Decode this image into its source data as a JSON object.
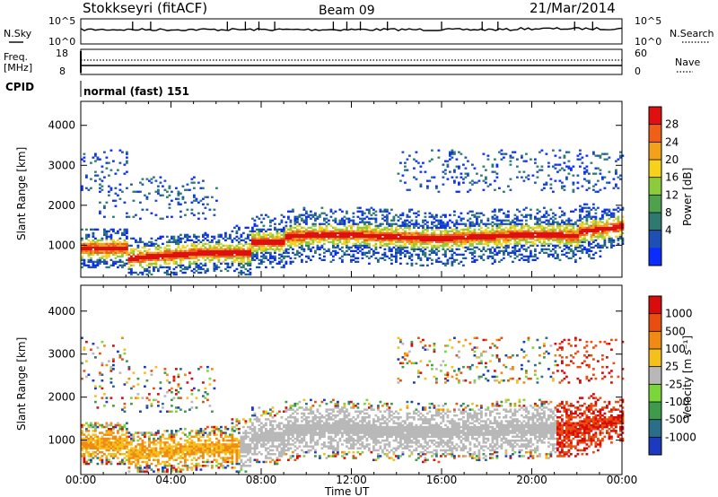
{
  "header": {
    "station": "Stokkseyri (fitACF)",
    "beam": "Beam 09",
    "date": "21/Mar/2014"
  },
  "strips": {
    "nsky_label": "N.Sky",
    "nsearch_label": "N.Search",
    "nsky_ticks_left": [
      "10^5",
      "10^0"
    ],
    "nsky_ticks_right": [
      "10^5",
      "10^0"
    ],
    "freq_label": "Freq.",
    "freq_unit": "[MHz]",
    "freq_ticks": [
      "18",
      "8"
    ],
    "nave_label": "Nave",
    "nave_ticks": [
      "60",
      "0"
    ],
    "cpid_label": "CPID",
    "cpid_value": "normal (fast) 151"
  },
  "colors": {
    "power_scale": [
      "#0a2cff",
      "#1d4fb4",
      "#2e7a70",
      "#4ea24e",
      "#8ccc3c",
      "#f6d21c",
      "#f5a01a",
      "#ef5f16",
      "#e01010"
    ],
    "velocity_scale": [
      "#1c3ac0",
      "#2a6e8a",
      "#3f9b4c",
      "#7ad63a",
      "#b8b8b8",
      "#f4c01e",
      "#f08a14",
      "#e84e10",
      "#d80c0c"
    ]
  },
  "chart_data": [
    {
      "type": "heatmap",
      "title": "Power",
      "xlabel": "Time UT",
      "ylabel": "Slant Range [km]",
      "x_ticks": [
        "00:00",
        "04:00",
        "08:00",
        "12:00",
        "16:00",
        "20:00",
        "00:00"
      ],
      "y_ticks": [
        "1000",
        "2000",
        "3000",
        "4000"
      ],
      "ylim": [
        200,
        4600
      ],
      "colorbar_label": "Power [dB]",
      "colorbar_ticks": [
        "4",
        "8",
        "12",
        "16",
        "20",
        "24",
        "28"
      ],
      "colorbar_range": [
        0,
        30
      ]
    },
    {
      "type": "heatmap",
      "title": "Velocity",
      "xlabel": "Time UT",
      "ylabel": "Slant Range [km]",
      "x_ticks": [
        "00:00",
        "04:00",
        "08:00",
        "12:00",
        "16:00",
        "20:00",
        "00:00"
      ],
      "y_ticks": [
        "1000",
        "2000",
        "3000",
        "4000"
      ],
      "ylim": [
        200,
        4600
      ],
      "colorbar_label": "Velocity [m s⁻¹]",
      "colorbar_ticks": [
        "1000",
        "500",
        "100",
        "25",
        "-25",
        "-100",
        "-500",
        "-1000"
      ]
    }
  ]
}
